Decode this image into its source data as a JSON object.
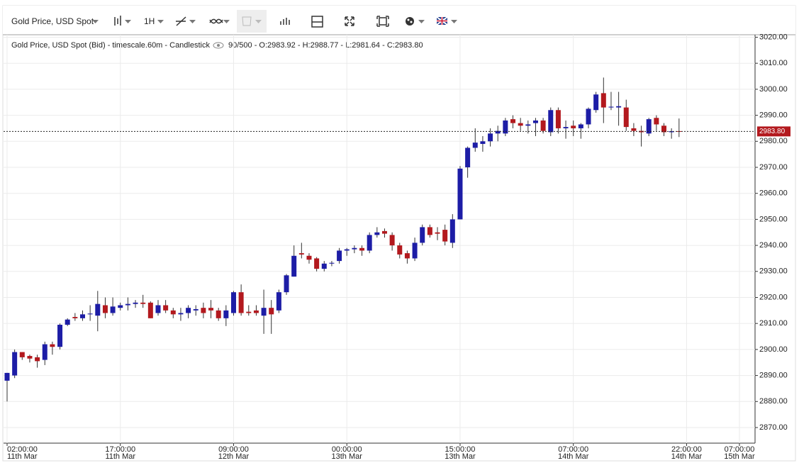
{
  "toolbar": {
    "instrument": "Gold Price, USD Spot",
    "interval": "1H"
  },
  "chart_data": {
    "type": "candlestick",
    "title": "Gold Price, USD Spot (Bid) - timescale.60m - Candlestick",
    "readout": "90/500 - O:2983.92 - H:2988.77 - L:2981.64 - C:2983.80",
    "up_color": "#1d1da6",
    "down_color": "#b3191e",
    "categories": [
      [
        "02:00:00",
        "11th Mar"
      ],
      null,
      null,
      null,
      null,
      null,
      null,
      null,
      null,
      null,
      null,
      null,
      null,
      null,
      null,
      [
        "17:00:00",
        "11th Mar"
      ],
      null,
      null,
      null,
      null,
      null,
      null,
      null,
      null,
      null,
      null,
      null,
      null,
      null,
      null,
      [
        "09:00:00",
        "12th Mar"
      ],
      null,
      null,
      null,
      null,
      null,
      null,
      null,
      null,
      null,
      null,
      null,
      null,
      null,
      null,
      [
        "00:00:00",
        "13th Mar"
      ],
      null,
      null,
      null,
      null,
      null,
      null,
      null,
      null,
      null,
      null,
      null,
      null,
      null,
      null,
      [
        "15:00:00",
        "13th Mar"
      ],
      null,
      null,
      null,
      null,
      null,
      null,
      null,
      null,
      null,
      null,
      null,
      null,
      null,
      null,
      [
        "07:00:00",
        "14th Mar"
      ],
      null,
      null,
      null,
      null,
      null,
      null,
      null,
      null,
      null,
      null,
      null,
      null,
      null,
      null,
      [
        "22:00:00",
        "14th Mar"
      ],
      null,
      null,
      null,
      null,
      null,
      null,
      [
        "07:00:00",
        "15th Mar"
      ]
    ],
    "open": [
      2888,
      2890,
      2899,
      2897.5,
      2897,
      2896,
      2902,
      2901,
      2909.5,
      2912.5,
      2912,
      2913.5,
      2913,
      2917,
      2914,
      2916,
      2917,
      2917.5,
      2918,
      2918,
      2914,
      2917,
      2915,
      2913.5,
      2914,
      2915,
      2916,
      2916,
      2915,
      2912,
      2914,
      2922,
      2914.5,
      2915,
      2913,
      2916,
      2915,
      2922,
      2928,
      2937,
      2936,
      2935,
      2931,
      2933,
      2934,
      2938,
      2938.5,
      2939,
      2938,
      2944,
      2945.5,
      2944,
      2940,
      2937,
      2935,
      2941,
      2947,
      2945,
      2946,
      2941,
      2950,
      2970,
      2977.5,
      2979,
      2980,
      2983,
      2983,
      2988.5,
      2987,
      2986,
      2987,
      2988,
      2983.5,
      2992,
      2985,
      2986,
      2985,
      2986.5,
      2992,
      2998.5,
      2993,
      2993,
      2993,
      2985,
      2984,
      2983,
      2989,
      2986,
      2983.5,
      2983.92,
      null,
      null,
      null,
      null,
      null,
      null,
      null,
      null
    ],
    "high": [
      2891,
      2900,
      2899,
      2898,
      2898,
      2903,
      2903,
      2910,
      2912,
      2914,
      2915,
      2917,
      2922.5,
      2920,
      2920,
      2918,
      2920,
      2919,
      2921,
      2918.5,
      2919,
      2919,
      2916,
      2916,
      2917,
      2917,
      2918,
      2919,
      2916,
      2917,
      2922.5,
      2925,
      2917,
      2917,
      2923,
      2919,
      2923,
      2929,
      2940,
      2941,
      2937,
      2935.5,
      2934,
      2934,
      2939,
      2939,
      2940,
      2940,
      2945,
      2947,
      2946.5,
      2945,
      2941,
      2938,
      2943,
      2948,
      2948,
      2947,
      2948,
      2952,
      2970.5,
      2978,
      2985,
      2982,
      2985,
      2986,
      2989,
      2990,
      2989,
      2988,
      2989,
      2989,
      2993,
      2993,
      2988,
      2988,
      2987,
      2993,
      2999,
      3004.5,
      2999,
      2999,
      2996,
      2987,
      2986,
      2989,
      2990,
      2987,
      2985,
      2988.77,
      null,
      null,
      null,
      null,
      null,
      null,
      null,
      null
    ],
    "low": [
      2880,
      2889,
      2896,
      2895,
      2893,
      2894,
      2898,
      2900,
      2909,
      2911,
      2911,
      2911,
      2907,
      2912,
      2913,
      2915,
      2915,
      2916,
      2916,
      2912,
      2913,
      2914,
      2912,
      2911,
      2912,
      2913,
      2912,
      2912,
      2911,
      2909,
      2913,
      2913,
      2913,
      2913,
      2906,
      2906,
      2914,
      2921,
      2928,
      2935,
      2933,
      2930,
      2930,
      2932,
      2933,
      2936,
      2937,
      2936,
      2937,
      2943,
      2943,
      2938,
      2935,
      2933,
      2934,
      2940,
      2943,
      2942,
      2940,
      2939,
      2950,
      2966,
      2976,
      2976,
      2978,
      2980,
      2982,
      2985,
      2984,
      2983,
      2982,
      2983,
      2982,
      2983,
      2981,
      2982,
      2981,
      2985,
      2991,
      2987,
      2992,
      2986,
      2984,
      2982,
      2978,
      2982,
      2984,
      2982,
      2981,
      2981.64,
      null,
      null,
      null,
      null,
      null,
      null,
      null,
      null
    ],
    "close": [
      2891,
      2899,
      2897,
      2896.5,
      2895.5,
      2902,
      2901,
      2909.5,
      2911.5,
      2912,
      2913.5,
      2913.8,
      2917.5,
      2914,
      2916.5,
      2917,
      2917.5,
      2918,
      2917.5,
      2912,
      2917,
      2915,
      2913.5,
      2914,
      2916,
      2915.5,
      2914,
      2915,
      2912,
      2915,
      2922,
      2914,
      2914,
      2914,
      2916,
      2913.5,
      2922,
      2928.5,
      2936,
      2936.5,
      2934.5,
      2931,
      2933,
      2933.3,
      2938,
      2938.5,
      2939,
      2938,
      2944,
      2945,
      2944.5,
      2940,
      2936.5,
      2935,
      2941,
      2947,
      2944,
      2944.5,
      2941.5,
      2950,
      2969.5,
      2977.5,
      2979.5,
      2980,
      2983,
      2984,
      2988,
      2987,
      2986,
      2986.5,
      2988,
      2984,
      2992,
      2985,
      2985.5,
      2985,
      2986.5,
      2992.5,
      2998,
      2993,
      2993.3,
      2993.5,
      2985.5,
      2984,
      2983.5,
      2988.5,
      2986.5,
      2983.5,
      2983.9,
      2983.8,
      null,
      null,
      null,
      null,
      null,
      null,
      null,
      null
    ],
    "last_price": {
      "value": 2983.8,
      "label": "2983.80"
    },
    "ylim": [
      2864,
      3021.5
    ],
    "yticks": [
      {
        "value": 2870,
        "label": "2870.00"
      },
      {
        "value": 2880,
        "label": "2880.00"
      },
      {
        "value": 2890,
        "label": "2890.00"
      },
      {
        "value": 2900,
        "label": "2900.00"
      },
      {
        "value": 2910,
        "label": "2910.00"
      },
      {
        "value": 2920,
        "label": "2920.00"
      },
      {
        "value": 2930,
        "label": "2930.00"
      },
      {
        "value": 2940,
        "label": "2940.00"
      },
      {
        "value": 2950,
        "label": "2950.00"
      },
      {
        "value": 2960,
        "label": "2960.00"
      },
      {
        "value": 2970,
        "label": "2970.00"
      },
      {
        "value": 2980,
        "label": "2980.00"
      },
      {
        "value": 2990,
        "label": "2990.00"
      },
      {
        "value": 3000,
        "label": "3000.00"
      },
      {
        "value": 3010,
        "label": "3010.00"
      },
      {
        "value": 3020,
        "label": "3020.00"
      }
    ],
    "grid": true
  }
}
